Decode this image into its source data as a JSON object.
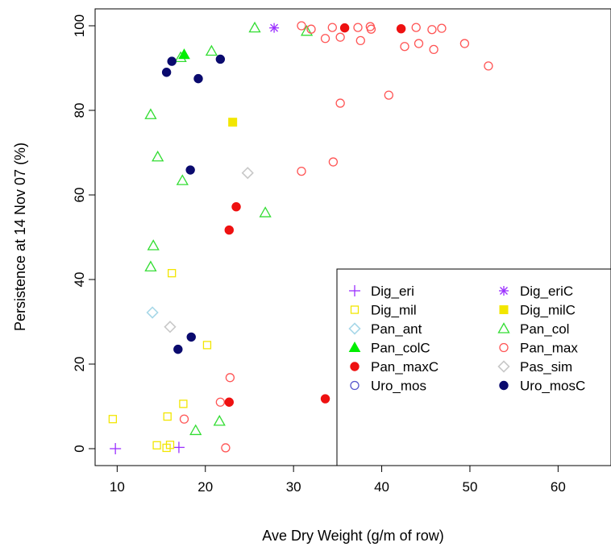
{
  "chart_data": {
    "type": "scatter",
    "title": "",
    "xlabel": "Ave Dry Weight (g/m of row)",
    "ylabel": "Persistence at 14 Nov 07 (%)",
    "xlim": [
      7.5,
      66
    ],
    "ylim": [
      -4,
      104
    ],
    "xticks": [
      10,
      20,
      30,
      40,
      50,
      60
    ],
    "yticks": [
      0,
      20,
      40,
      60,
      80,
      100
    ],
    "grid": false,
    "legend_position": "bottom-right",
    "series": [
      {
        "name": "Dig_eri",
        "marker": "plus",
        "color": "#9B30FF",
        "points": [
          [
            9.8,
            0
          ],
          [
            17.0,
            0.3
          ]
        ]
      },
      {
        "name": "Dig_eriC",
        "marker": "asterisk",
        "color": "#9B30FF",
        "points": [
          [
            27.8,
            99.5
          ]
        ]
      },
      {
        "name": "Dig_mil",
        "marker": "square-open",
        "color": "#F2E600",
        "points": [
          [
            9.5,
            7.0
          ],
          [
            14.5,
            0.8
          ],
          [
            15.6,
            0.2
          ],
          [
            16.0,
            0.9
          ],
          [
            15.7,
            7.6
          ],
          [
            17.5,
            10.6
          ],
          [
            16.2,
            41.5
          ],
          [
            20.2,
            24.5
          ]
        ]
      },
      {
        "name": "Dig_milC",
        "marker": "square-filled",
        "color": "#F2E600",
        "points": [
          [
            23.1,
            77.2
          ]
        ]
      },
      {
        "name": "Pan_ant",
        "marker": "diamond-open",
        "color": "#A8D8E8",
        "points": [
          [
            14.0,
            32.2
          ]
        ]
      },
      {
        "name": "Pan_col",
        "marker": "triangle-open",
        "color": "#33DD33",
        "points": [
          [
            13.8,
            79.0
          ],
          [
            14.6,
            69.0
          ],
          [
            17.4,
            63.4
          ],
          [
            14.1,
            48.0
          ],
          [
            13.8,
            43.0
          ],
          [
            17.2,
            92.5
          ],
          [
            20.7,
            94.0
          ],
          [
            25.6,
            99.5
          ],
          [
            31.5,
            98.7
          ],
          [
            26.8,
            55.8
          ],
          [
            21.6,
            6.5
          ],
          [
            18.9,
            4.3
          ]
        ]
      },
      {
        "name": "Pan_colC",
        "marker": "triangle-filled",
        "color": "#00EE00",
        "points": [
          [
            17.6,
            93.2
          ]
        ]
      },
      {
        "name": "Pan_max",
        "marker": "circle-open",
        "color": "#FF5555",
        "points": [
          [
            30.9,
            100
          ],
          [
            32.0,
            99.2
          ],
          [
            34.4,
            99.6
          ],
          [
            37.3,
            99.6
          ],
          [
            38.7,
            99.8
          ],
          [
            38.8,
            99.2
          ],
          [
            43.9,
            99.6
          ],
          [
            45.7,
            99.1
          ],
          [
            46.8,
            99.4
          ],
          [
            33.6,
            97.0
          ],
          [
            35.3,
            97.3
          ],
          [
            37.6,
            96.5
          ],
          [
            42.6,
            95.1
          ],
          [
            44.2,
            95.8
          ],
          [
            45.9,
            94.4
          ],
          [
            49.4,
            95.8
          ],
          [
            52.1,
            90.5
          ],
          [
            40.8,
            83.6
          ],
          [
            35.3,
            81.7
          ],
          [
            30.9,
            65.6
          ],
          [
            34.5,
            67.8
          ],
          [
            17.6,
            7.0
          ],
          [
            21.7,
            11.0
          ],
          [
            22.3,
            0.2
          ],
          [
            22.8,
            16.8
          ]
        ]
      },
      {
        "name": "Pan_maxC",
        "marker": "circle-filled",
        "color": "#EE1111",
        "points": [
          [
            35.8,
            99.5
          ],
          [
            42.2,
            99.3
          ],
          [
            23.5,
            57.2
          ],
          [
            22.7,
            51.7
          ],
          [
            22.7,
            11.0
          ],
          [
            33.6,
            11.8
          ]
        ]
      },
      {
        "name": "Pas_sim",
        "marker": "diamond-open",
        "color": "#C8C8C8",
        "points": [
          [
            24.8,
            65.2
          ],
          [
            16.0,
            28.8
          ]
        ]
      },
      {
        "name": "Uro_mos",
        "marker": "circle-open",
        "color": "#5555CC",
        "points": []
      },
      {
        "name": "Uro_mosC",
        "marker": "circle-filled",
        "color": "#0A0A6E",
        "points": [
          [
            15.6,
            89.0
          ],
          [
            16.2,
            91.6
          ],
          [
            19.2,
            87.5
          ],
          [
            21.7,
            92.1
          ],
          [
            18.3,
            65.9
          ],
          [
            18.4,
            26.4
          ],
          [
            16.9,
            23.5
          ]
        ]
      }
    ],
    "legend_entries": [
      {
        "label": "Dig_eri",
        "series": "Dig_eri"
      },
      {
        "label": "Dig_eriC",
        "series": "Dig_eriC"
      },
      {
        "label": "Dig_mil",
        "series": "Dig_mil"
      },
      {
        "label": "Dig_milC",
        "series": "Dig_milC"
      },
      {
        "label": "Pan_ant",
        "series": "Pan_ant"
      },
      {
        "label": "Pan_col",
        "series": "Pan_col"
      },
      {
        "label": "Pan_colC",
        "series": "Pan_colC"
      },
      {
        "label": "Pan_max",
        "series": "Pan_max"
      },
      {
        "label": "Pan_maxC",
        "series": "Pan_maxC"
      },
      {
        "label": "Pas_sim",
        "series": "Pas_sim"
      },
      {
        "label": "Uro_mos",
        "series": "Uro_mos"
      },
      {
        "label": "Uro_mosC",
        "series": "Uro_mosC"
      }
    ]
  }
}
